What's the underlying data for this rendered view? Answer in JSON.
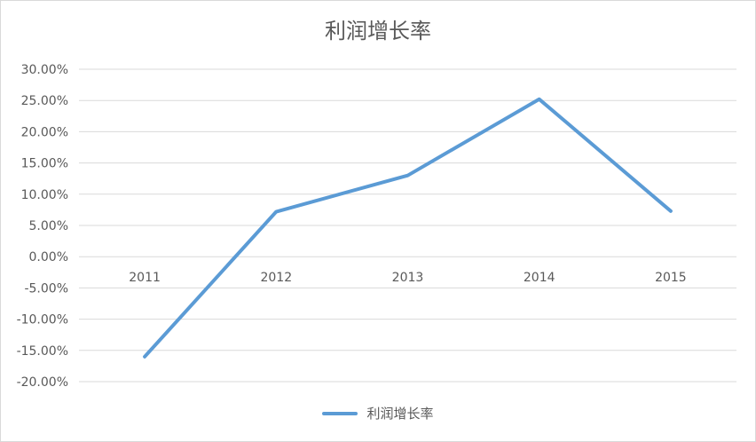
{
  "chart_data": {
    "type": "line",
    "title": "利润增长率",
    "categories": [
      "2011",
      "2012",
      "2013",
      "2014",
      "2015"
    ],
    "series": [
      {
        "name": "利润增长率",
        "values": [
          -0.16,
          0.072,
          0.13,
          0.252,
          0.073
        ],
        "color": "#5b9bd5"
      }
    ],
    "ylim": [
      -0.2,
      0.3
    ],
    "yticks": [
      0.3,
      0.25,
      0.2,
      0.15,
      0.1,
      0.05,
      0.0,
      -0.05,
      -0.1,
      -0.15,
      -0.2
    ],
    "ytick_labels": [
      "30.00%",
      "25.00%",
      "20.00%",
      "15.00%",
      "10.00%",
      "5.00%",
      "0.00%",
      "-5.00%",
      "-10.00%",
      "-15.00%",
      "-20.00%"
    ],
    "xlabel": "",
    "ylabel": "",
    "grid": true,
    "legend_position": "bottom",
    "gridline_color": "#d9d9d9"
  }
}
